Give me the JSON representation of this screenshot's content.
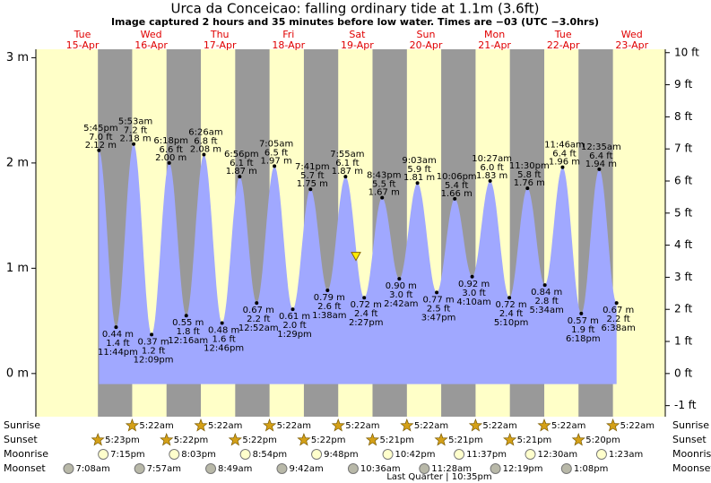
{
  "header": {
    "title": "Urca da Conceicao: falling  ordinary tide at 1.1m (3.6ft)",
    "subtitle": "Image captured 2 hours and 35 minutes before low water. Times are −03 (UTC −3.0hrs)"
  },
  "chart_data": {
    "type": "tide",
    "days": [
      {
        "weekday": "Tue",
        "date": "15-Apr"
      },
      {
        "weekday": "Wed",
        "date": "16-Apr"
      },
      {
        "weekday": "Thu",
        "date": "17-Apr"
      },
      {
        "weekday": "Fri",
        "date": "18-Apr"
      },
      {
        "weekday": "Sat",
        "date": "19-Apr"
      },
      {
        "weekday": "Sun",
        "date": "20-Apr"
      },
      {
        "weekday": "Mon",
        "date": "21-Apr"
      },
      {
        "weekday": "Tue",
        "date": "22-Apr"
      },
      {
        "weekday": "Wed",
        "date": "23-Apr"
      }
    ],
    "ylim": [
      -0.41,
      3.08
    ],
    "yticks": [
      {
        "value": 0,
        "label": "0 m"
      },
      {
        "value": 1,
        "label": "1 m"
      },
      {
        "value": 2,
        "label": "2 m"
      },
      {
        "value": 3,
        "label": "3 m"
      }
    ],
    "y2lim": [
      -1.345,
      10.105
    ],
    "y2ticks": [
      {
        "value": -1,
        "label": "-1 ft"
      },
      {
        "value": 0,
        "label": "0 ft"
      },
      {
        "value": 1,
        "label": "1 ft"
      },
      {
        "value": 2,
        "label": "2 ft"
      },
      {
        "value": 3,
        "label": "3 ft"
      },
      {
        "value": 4,
        "label": "4 ft"
      },
      {
        "value": 5,
        "label": "5 ft"
      },
      {
        "value": 6,
        "label": "6 ft"
      },
      {
        "value": 7,
        "label": "7 ft"
      },
      {
        "value": 8,
        "label": "8 ft"
      },
      {
        "value": 9,
        "label": "9 ft"
      },
      {
        "value": 10,
        "label": "10 ft"
      }
    ],
    "day_color": "#ffffc8",
    "night_color": "#999999",
    "water_color": "#a0a8ff",
    "now_height": 1.1,
    "tides": [
      {
        "time": "5:45pm",
        "ft": "7.0 ft",
        "m": "2.12 m",
        "height": 2.12
      },
      {
        "time": "11:44pm",
        "ft": "1.4 ft",
        "m": "0.44 m",
        "height": 0.44
      },
      {
        "time": "5:53am",
        "ft": "7.2 ft",
        "m": "2.18 m",
        "height": 2.18
      },
      {
        "time": "12:09pm",
        "ft": "1.2 ft",
        "m": "0.37 m",
        "height": 0.37
      },
      {
        "time": "6:18pm",
        "ft": "6.6 ft",
        "m": "2.00 m",
        "height": 2.0
      },
      {
        "time": "12:16am",
        "ft": "1.8 ft",
        "m": "0.55 m",
        "height": 0.55
      },
      {
        "time": "6:26am",
        "ft": "6.8 ft",
        "m": "2.08 m",
        "height": 2.08
      },
      {
        "time": "12:46pm",
        "ft": "1.6 ft",
        "m": "0.48 m",
        "height": 0.48
      },
      {
        "time": "6:56pm",
        "ft": "6.1 ft",
        "m": "1.87 m",
        "height": 1.87
      },
      {
        "time": "12:52am",
        "ft": "2.2 ft",
        "m": "0.67 m",
        "height": 0.67
      },
      {
        "time": "7:05am",
        "ft": "6.5 ft",
        "m": "1.97 m",
        "height": 1.97
      },
      {
        "time": "1:29pm",
        "ft": "2.0 ft",
        "m": "0.61 m",
        "height": 0.61
      },
      {
        "time": "7:41pm",
        "ft": "5.7 ft",
        "m": "1.75 m",
        "height": 1.75
      },
      {
        "time": "1:38am",
        "ft": "2.6 ft",
        "m": "0.79 m",
        "height": 0.79
      },
      {
        "time": "7:55am",
        "ft": "6.1 ft",
        "m": "1.87 m",
        "height": 1.87
      },
      {
        "time": "2:27pm",
        "ft": "2.4 ft",
        "m": "0.72 m",
        "height": 0.72
      },
      {
        "time": "8:43pm",
        "ft": "5.5 ft",
        "m": "1.67 m",
        "height": 1.67
      },
      {
        "time": "2:42am",
        "ft": "3.0 ft",
        "m": "0.90 m",
        "height": 0.9
      },
      {
        "time": "9:03am",
        "ft": "5.9 ft",
        "m": "1.81 m",
        "height": 1.81
      },
      {
        "time": "3:47pm",
        "ft": "2.5 ft",
        "m": "0.77 m",
        "height": 0.77
      },
      {
        "time": "10:06pm",
        "ft": "5.4 ft",
        "m": "1.66 m",
        "height": 1.66
      },
      {
        "time": "4:10am",
        "ft": "3.0 ft",
        "m": "0.92 m",
        "height": 0.92
      },
      {
        "time": "10:27am",
        "ft": "6.0 ft",
        "m": "1.83 m",
        "height": 1.83
      },
      {
        "time": "5:10pm",
        "ft": "2.4 ft",
        "m": "0.72 m",
        "height": 0.72
      },
      {
        "time": "11:30pm",
        "ft": "5.8 ft",
        "m": "1.76 m",
        "height": 1.76
      },
      {
        "time": "5:34am",
        "ft": "2.8 ft",
        "m": "0.84 m",
        "height": 0.84
      },
      {
        "time": "11:46am",
        "ft": "6.4 ft",
        "m": "1.96 m",
        "height": 1.96
      },
      {
        "time": "6:18pm",
        "ft": "1.9 ft",
        "m": "0.57 m",
        "height": 0.57
      },
      {
        "time": "12:35am",
        "ft": "6.4 ft",
        "m": "1.94 m",
        "height": 1.94
      },
      {
        "time": "6:38am",
        "ft": "2.2 ft",
        "m": "0.67 m",
        "height": 0.67
      }
    ],
    "rows": [
      {
        "name": "Sunrise",
        "times": [
          null,
          "5:22am",
          "5:22am",
          "5:22am",
          "5:22am",
          "5:22am",
          "5:22am",
          "5:22am",
          "5:22am"
        ]
      },
      {
        "name": "Sunset",
        "times": [
          "5:23pm",
          "5:22pm",
          "5:22pm",
          "5:22pm",
          "5:21pm",
          "5:21pm",
          "5:21pm",
          "5:20pm",
          null
        ]
      },
      {
        "name": "Moonrise",
        "times": [
          "7:15pm",
          "8:03pm",
          "8:54pm",
          "9:48pm",
          "10:42pm",
          "11:37pm",
          null,
          "12:30am",
          "1:23am"
        ]
      },
      {
        "name": "Moonset",
        "times": [
          "7:08am",
          "7:57am",
          "8:49am",
          "9:42am",
          "10:36am",
          "11:28am",
          "12:19pm",
          "1:08pm",
          null
        ]
      }
    ],
    "moon_phase": "Last Quarter | 10:35pm"
  }
}
